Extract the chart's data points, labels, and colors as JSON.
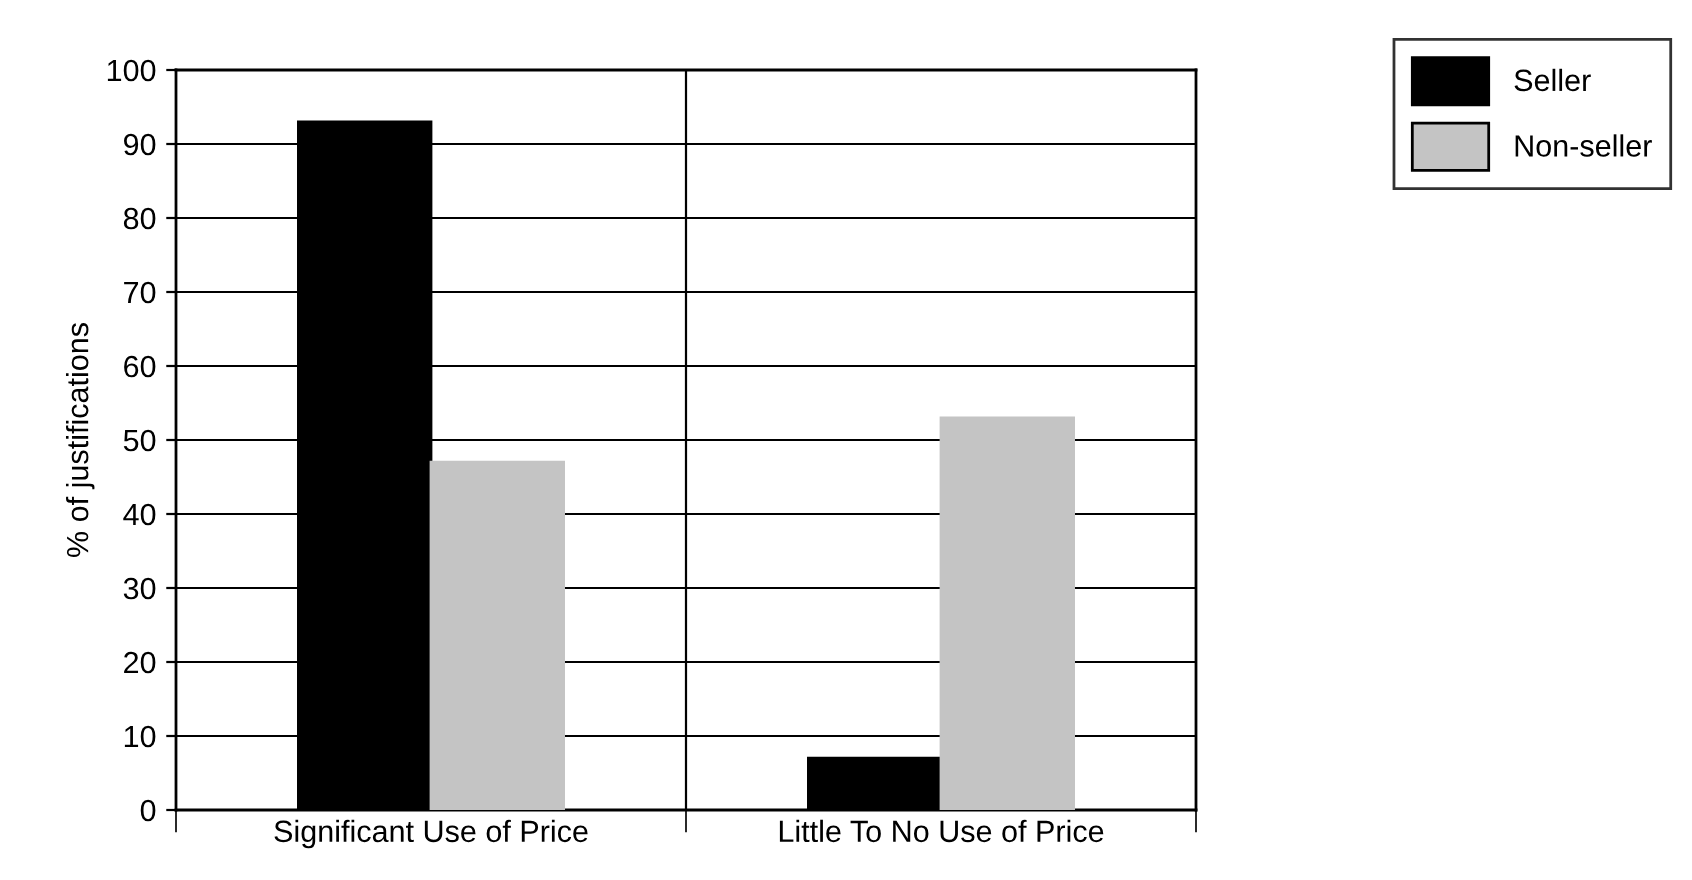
{
  "chart_data": {
    "type": "bar",
    "ylabel": "% of justifications",
    "categories": [
      "Significant Use of Price",
      "Little To No Use of Price"
    ],
    "series": [
      {
        "name": "Seller",
        "color": "#000000",
        "values": [
          93,
          7
        ]
      },
      {
        "name": "Non-seller",
        "color": "#c4c4c4",
        "values": [
          47,
          53
        ]
      }
    ],
    "ylim": [
      0,
      100
    ],
    "yticks": [
      0,
      10,
      20,
      30,
      40,
      50,
      60,
      70,
      80,
      90,
      100
    ],
    "grid": "y",
    "legend": "top right"
  }
}
